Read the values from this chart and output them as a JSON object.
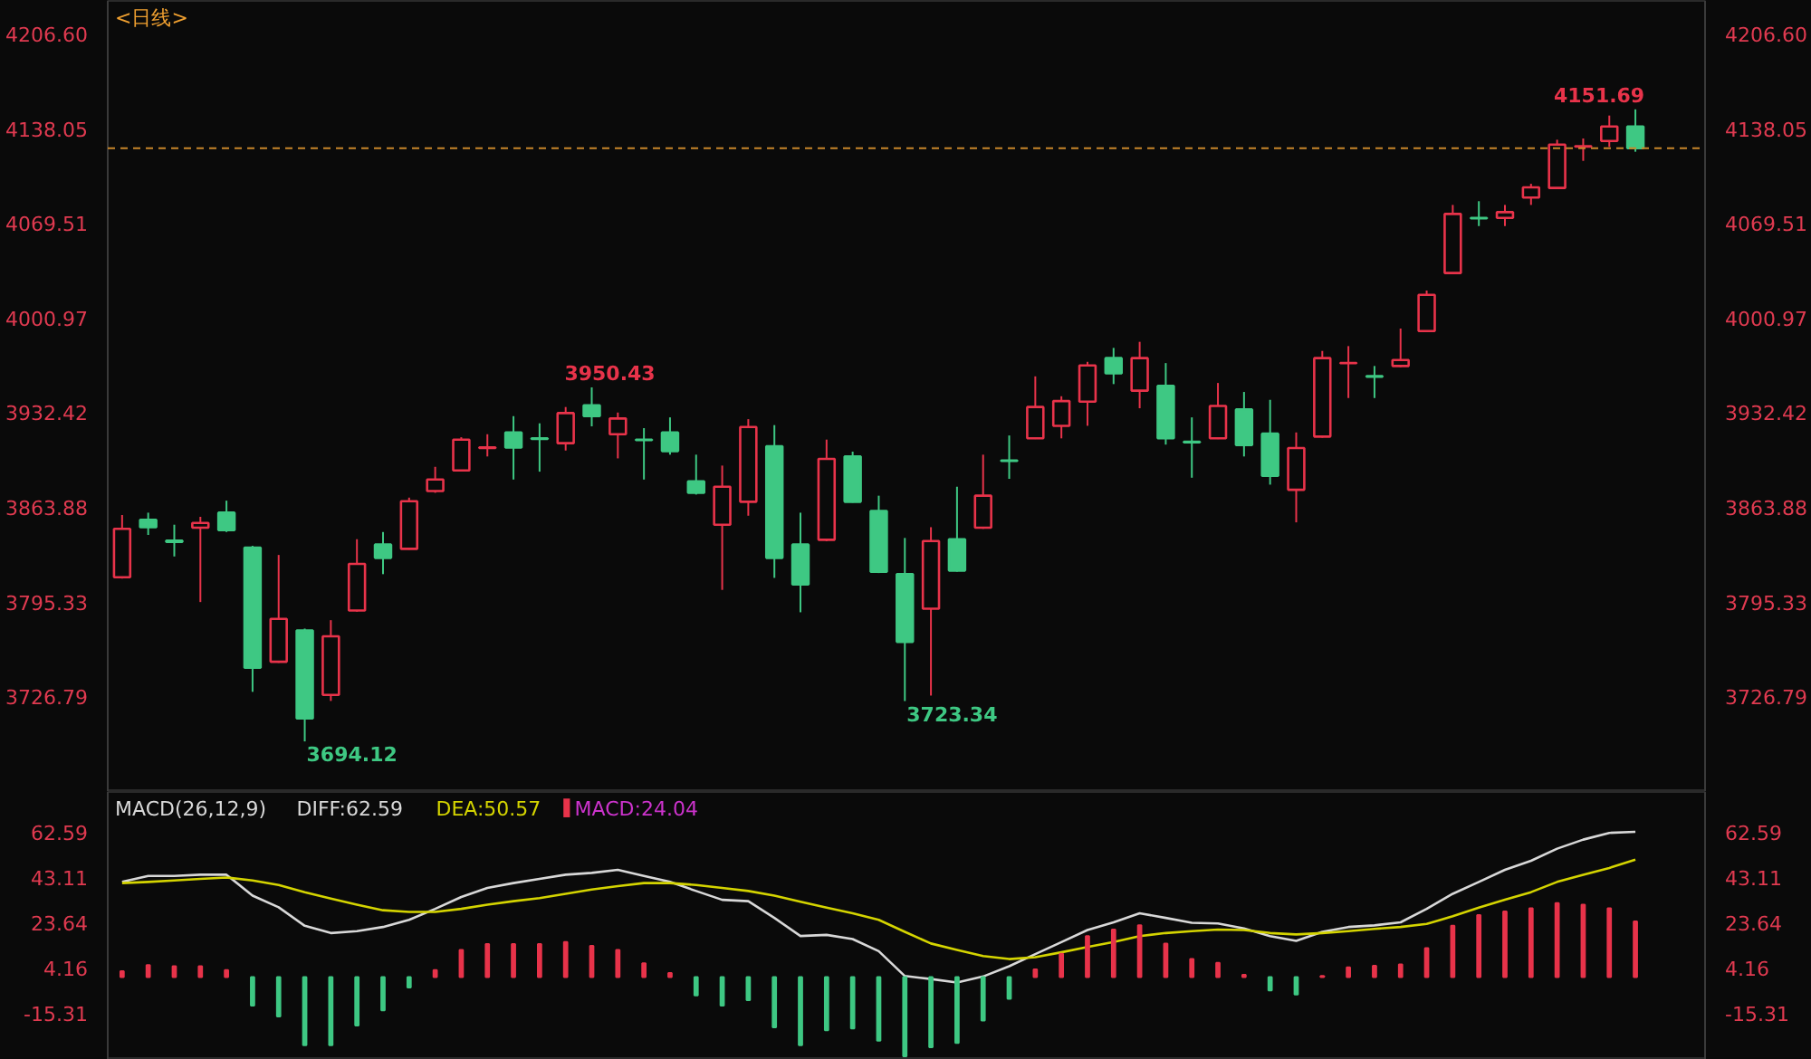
{
  "chart_data": [
    {
      "type": "candlestick",
      "title": "<日线>",
      "categories": [
        null,
        null,
        null,
        null,
        null,
        null,
        null,
        null,
        null,
        null,
        null,
        null,
        null,
        null,
        null,
        null,
        null,
        null,
        null,
        null,
        null,
        null,
        null,
        null,
        null,
        null,
        null,
        null,
        null,
        null,
        null,
        null,
        null,
        null,
        null,
        null,
        null,
        null,
        null,
        null,
        null,
        null,
        null,
        null,
        null,
        null,
        null,
        null,
        null,
        null,
        null,
        null,
        null,
        null,
        null,
        null,
        null,
        null,
        null
      ],
      "ohlc": [
        [
          3813,
          3858,
          3812,
          3848
        ],
        [
          3854.5,
          3859.7,
          3843.6,
          3849.2
        ],
        [
          3839.5,
          3851,
          3828,
          3838.5
        ],
        [
          3848.8,
          3856.7,
          3795,
          3852.3
        ],
        [
          3859.7,
          3868.4,
          3845.7,
          3847
        ],
        [
          3834.4,
          3835.7,
          3730,
          3747.4
        ],
        [
          3751.8,
          3829.1,
          3751,
          3782.8
        ],
        [
          3774.5,
          3775.8,
          3694.12,
          3710.7
        ],
        [
          3727.8,
          3781.9,
          3723.4,
          3770.2
        ],
        [
          3788.9,
          3840.5,
          3788,
          3822.6
        ],
        [
          3836.6,
          3845.7,
          3815.2,
          3827
        ],
        [
          3833.5,
          3870.6,
          3833,
          3868
        ],
        [
          3875.4,
          3892.9,
          3874.1,
          3883.7
        ],
        [
          3890.3,
          3914.3,
          3890,
          3912.6
        ],
        [
          3906.5,
          3916.5,
          3900.4,
          3907
        ],
        [
          3917.8,
          3929.6,
          3883.7,
          3906.9
        ],
        [
          3913.5,
          3924.4,
          3889.4,
          3913.1
        ],
        [
          3910,
          3936.2,
          3904.7,
          3931.8
        ],
        [
          3937.5,
          3950.43,
          3922.2,
          3929.6
        ],
        [
          3916.5,
          3932.2,
          3899,
          3927.9
        ],
        [
          3912.6,
          3920.9,
          3883.7,
          3912.2
        ],
        [
          3917.8,
          3928.7,
          3901.7,
          3904.3
        ],
        [
          3882.4,
          3901.7,
          3872.8,
          3874.1
        ],
        [
          3851,
          3893.8,
          3803.8,
          3878.5
        ],
        [
          3867.6,
          3927.4,
          3857.5,
          3921.7
        ],
        [
          3907.8,
          3923.1,
          3812.5,
          3827
        ],
        [
          3836.6,
          3859.7,
          3787.6,
          3807.7
        ],
        [
          3840.1,
          3912.6,
          3839,
          3898.6
        ],
        [
          3900.4,
          3903.9,
          3867,
          3867.6
        ],
        [
          3861,
          3872,
          3816,
          3816.9
        ],
        [
          3815.2,
          3841.4,
          3723.34,
          3766.2
        ],
        [
          3790.2,
          3849.2,
          3727.3,
          3839.2
        ],
        [
          3840.5,
          3878.5,
          3817,
          3817.8
        ],
        [
          3848.8,
          3901.7,
          3848,
          3872
        ],
        [
          3897.5,
          3915.6,
          3884.2,
          3897.2
        ],
        [
          3913.5,
          3958.4,
          3913,
          3936.2
        ],
        [
          3922.6,
          3944,
          3913.5,
          3940.5
        ],
        [
          3940.1,
          3968.9,
          3922.6,
          3966.3
        ],
        [
          3971.6,
          3979,
          3952.8,
          3960.6
        ],
        [
          3948,
          3983.4,
          3935.3,
          3971.6
        ],
        [
          3951.5,
          3968,
          3909,
          3913.5
        ],
        [
          3911,
          3928.7,
          3885,
          3910.7
        ],
        [
          3913.5,
          3953.6,
          3913,
          3937
        ],
        [
          3934.4,
          3947.1,
          3900.4,
          3908.6
        ],
        [
          3916.9,
          3941.4,
          3880,
          3886.4
        ],
        [
          3876.3,
          3917.8,
          3852.7,
          3906.5
        ],
        [
          3914.8,
          3976.8,
          3914,
          3971.6
        ],
        [
          3967.9,
          3980.3,
          3942.7,
          3968.1
        ],
        [
          3958.5,
          3965.9,
          3942.7,
          3958.2
        ],
        [
          3965.9,
          3993,
          3965,
          3970.2
        ],
        [
          3991.2,
          4020.5,
          3991,
          4017.4
        ],
        [
          4033.2,
          4082.5,
          4033,
          4076
        ],
        [
          4073.1,
          4085.2,
          4067.2,
          4072.8
        ],
        [
          4073.1,
          4082.5,
          4067.2,
          4077.3
        ],
        [
          4087.8,
          4097.8,
          4082.5,
          4095.2
        ],
        [
          4094.8,
          4129.7,
          4094,
          4126.2
        ],
        [
          4124.7,
          4130.6,
          4114.4,
          4125
        ],
        [
          4128.8,
          4147.2,
          4124.5,
          4139.3
        ],
        [
          4139.3,
          4151.69,
          4121,
          4123.6
        ]
      ],
      "colors": [
        "#e8334a",
        "#3ec883",
        "#3ec883",
        "#e8334a",
        "#3ec883",
        "#3ec883",
        "#e8334a",
        "#3ec883",
        "#e8334a",
        "#e8334a",
        "#3ec883",
        "#e8334a",
        "#e8334a",
        "#e8334a",
        "#e8334a",
        "#3ec883",
        "#3ec883",
        "#e8334a",
        "#3ec883",
        "#e8334a",
        "#3ec883",
        "#3ec883",
        "#3ec883",
        "#e8334a",
        "#e8334a",
        "#3ec883",
        "#3ec883",
        "#e8334a",
        "#3ec883",
        "#3ec883",
        "#3ec883",
        "#e8334a",
        "#3ec883",
        "#e8334a",
        "#3ec883",
        "#e8334a",
        "#e8334a",
        "#e8334a",
        "#3ec883",
        "#e8334a",
        "#3ec883",
        "#3ec883",
        "#e8334a",
        "#3ec883",
        "#3ec883",
        "#e8334a",
        "#e8334a",
        "#e8334a",
        "#3ec883",
        "#e8334a",
        "#e8334a",
        "#e8334a",
        "#3ec883",
        "#e8334a",
        "#e8334a",
        "#e8334a",
        "#e8334a",
        "#e8334a",
        "#3ec883"
      ],
      "annotations": [
        "3950.43",
        "3694.12",
        "3723.34",
        "4151.69"
      ],
      "ref_lines": [
        {
          "axis": "y",
          "value": 4123.6,
          "color": "#c8862a",
          "line_style": "dashed"
        }
      ],
      "ylim": [
        3657.5,
        4230.2
      ],
      "yticks": [
        {
          "value": 4206.6,
          "label": "4206.60"
        },
        {
          "value": 4138.05,
          "label": "4138.05"
        },
        {
          "value": 4069.51,
          "label": "4069.51"
        },
        {
          "value": 4000.97,
          "label": "4000.97"
        },
        {
          "value": 3932.42,
          "label": "3932.42"
        },
        {
          "value": 3863.88,
          "label": "3863.88"
        },
        {
          "value": 3795.33,
          "label": "3795.33"
        },
        {
          "value": 3726.79,
          "label": "3726.79"
        }
      ],
      "y2lim": [
        3657.5,
        4230.2
      ],
      "y2ticks": [
        {
          "value": 4206.6,
          "label": "4206.60"
        },
        {
          "value": 4138.05,
          "label": "4138.05"
        },
        {
          "value": 4069.51,
          "label": "4069.51"
        },
        {
          "value": 4000.97,
          "label": "4000.97"
        },
        {
          "value": 3932.42,
          "label": "3932.42"
        },
        {
          "value": 3863.88,
          "label": "3863.88"
        },
        {
          "value": 3795.33,
          "label": "3795.33"
        },
        {
          "value": 3726.79,
          "label": "3726.79"
        }
      ],
      "tick_labels": "y"
    },
    {
      "type": "line",
      "title": "MACD(26,12,9)",
      "categories": [
        null,
        null,
        null,
        null,
        null,
        null,
        null,
        null,
        null,
        null,
        null,
        null,
        null,
        null,
        null,
        null,
        null,
        null,
        null,
        null,
        null,
        null,
        null,
        null,
        null,
        null,
        null,
        null,
        null,
        null,
        null,
        null,
        null,
        null,
        null,
        null,
        null,
        null,
        null,
        null,
        null,
        null,
        null,
        null,
        null,
        null,
        null,
        null,
        null,
        null,
        null,
        null,
        null,
        null,
        null,
        null,
        null,
        null,
        null
      ],
      "series": [
        {
          "name": "DIFF:62.59",
          "type": "line",
          "color": "#d8d8d8",
          "values": [
            41.0,
            43.6,
            43.6,
            44.1,
            44.1,
            35.1,
            30.1,
            22.1,
            19.0,
            19.8,
            21.6,
            24.7,
            29.4,
            34.5,
            38.4,
            40.5,
            42.3,
            44.1,
            44.9,
            46.2,
            43.6,
            41.0,
            37.1,
            33.3,
            32.7,
            25.5,
            17.7,
            18.2,
            16.4,
            11.2,
            0.5,
            -0.8,
            -2.3,
            0.3,
            4.7,
            9.9,
            15.1,
            20.3,
            23.6,
            27.5,
            25.5,
            23.4,
            23.1,
            21.0,
            17.7,
            15.6,
            19.5,
            21.6,
            22.3,
            23.6,
            29.4,
            35.9,
            41.0,
            46.2,
            50.1,
            55.3,
            59.2,
            62.1,
            62.59
          ]
        },
        {
          "name": "DEA:50.57",
          "type": "line",
          "color": "#d4d400",
          "values": [
            40.5,
            41.0,
            41.6,
            42.3,
            42.9,
            41.6,
            39.7,
            36.6,
            33.8,
            31.2,
            28.8,
            28.1,
            28.1,
            29.4,
            31.2,
            32.7,
            34.0,
            35.9,
            37.7,
            39.2,
            40.5,
            40.5,
            39.7,
            38.4,
            37.1,
            35.1,
            32.5,
            29.9,
            27.5,
            24.7,
            19.5,
            14.5,
            11.7,
            9.1,
            7.8,
            8.6,
            10.7,
            13.0,
            15.1,
            17.7,
            19.0,
            19.8,
            20.5,
            20.3,
            19.0,
            18.4,
            19.0,
            19.8,
            20.8,
            21.6,
            22.9,
            26.2,
            29.9,
            33.3,
            36.6,
            41.0,
            44.1,
            47.0,
            50.57
          ]
        },
        {
          "name": "MACD:24.04",
          "type": "bar",
          "color": "#cc33cc",
          "values": [
            2.6,
            5.2,
            4.7,
            4.7,
            3.1,
            -12.2,
            -16.9,
            -29.3,
            -29.3,
            -20.8,
            -14.3,
            -4.4,
            3.1,
            11.7,
            14.3,
            14.3,
            14.3,
            15.1,
            13.5,
            11.7,
            6.0,
            1.8,
            -7.8,
            -12.2,
            -9.9,
            -21.6,
            -29.3,
            -22.8,
            -22.1,
            -27.3,
            -34,
            -30.1,
            -28.3,
            -18.7,
            -9.3,
            3.4,
            10.1,
            17.7,
            20.5,
            22.3,
            14.5,
            7.8,
            6.2,
            1.0,
            -5.7,
            -7.5,
            0.5,
            4.2,
            4.9,
            5.5,
            12.5,
            22.1,
            26.7,
            28.3,
            29.6,
            31.9,
            31.2,
            29.6,
            24.04
          ],
          "colors": [
            "#e8334a",
            "#e8334a",
            "#e8334a",
            "#e8334a",
            "#e8334a",
            "#3ec883",
            "#3ec883",
            "#3ec883",
            "#3ec883",
            "#3ec883",
            "#3ec883",
            "#3ec883",
            "#e8334a",
            "#e8334a",
            "#e8334a",
            "#e8334a",
            "#e8334a",
            "#e8334a",
            "#e8334a",
            "#e8334a",
            "#e8334a",
            "#e8334a",
            "#3ec883",
            "#3ec883",
            "#3ec883",
            "#3ec883",
            "#3ec883",
            "#3ec883",
            "#3ec883",
            "#3ec883",
            "#3ec883",
            "#3ec883",
            "#3ec883",
            "#3ec883",
            "#3ec883",
            "#e8334a",
            "#e8334a",
            "#e8334a",
            "#e8334a",
            "#e8334a",
            "#e8334a",
            "#e8334a",
            "#e8334a",
            "#e8334a",
            "#3ec883",
            "#3ec883",
            "#e8334a",
            "#e8334a",
            "#e8334a",
            "#e8334a",
            "#e8334a",
            "#e8334a",
            "#e8334a",
            "#e8334a",
            "#e8334a",
            "#e8334a",
            "#e8334a",
            "#e8334a",
            "#e8334a"
          ]
        }
      ],
      "legend": "top left",
      "ylim": [
        -35.6,
        79.7
      ],
      "yticks": [
        {
          "value": 62.59,
          "label": "62.59"
        },
        {
          "value": 43.11,
          "label": "43.11"
        },
        {
          "value": 23.64,
          "label": "23.64"
        },
        {
          "value": 4.16,
          "label": "4.16"
        },
        {
          "value": -15.31,
          "label": "-15.31"
        }
      ],
      "y2lim": [
        -35.6,
        79.7
      ],
      "y2ticks": [
        {
          "value": 62.59,
          "label": "62.59"
        },
        {
          "value": 43.11,
          "label": "43.11"
        },
        {
          "value": 23.64,
          "label": "23.64"
        },
        {
          "value": 4.16,
          "label": "4.16"
        },
        {
          "value": -15.31,
          "label": "-15.31"
        }
      ],
      "tick_labels": "y"
    }
  ]
}
